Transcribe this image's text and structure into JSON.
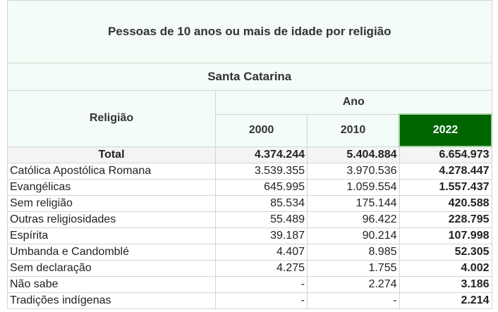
{
  "title": "Pessoas de 10 anos ou mais de idade por religião",
  "region": "Santa Catarina",
  "row_header": "Religião",
  "group_header": "Ano",
  "years": [
    "2000",
    "2010",
    "2022"
  ],
  "colors": {
    "highlight": "#006400",
    "header_bg": "#f3fcf6"
  },
  "rows": [
    {
      "label": "Total",
      "v": [
        "4.374.244",
        "5.404.884",
        "6.654.973"
      ]
    },
    {
      "label": "Católica Apostólica Romana",
      "v": [
        "3.539.355",
        "3.970.536",
        "4.278.447"
      ]
    },
    {
      "label": "Evangélicas",
      "v": [
        "645.995",
        "1.059.554",
        "1.557.437"
      ]
    },
    {
      "label": "Sem religião",
      "v": [
        "85.534",
        "175.144",
        "420.588"
      ]
    },
    {
      "label": "Outras religiosidades",
      "v": [
        "55.489",
        "96.422",
        "228.795"
      ]
    },
    {
      "label": "Espírita",
      "v": [
        "39.187",
        "90.214",
        "107.998"
      ]
    },
    {
      "label": "Umbanda e Candomblé",
      "v": [
        "4.407",
        "8.985",
        "52.305"
      ]
    },
    {
      "label": "Sem declaração",
      "v": [
        "4.275",
        "1.755",
        "4.002"
      ]
    },
    {
      "label": "Não sabe",
      "v": [
        "-",
        "2.274",
        "3.186"
      ]
    },
    {
      "label": "Tradições indígenas",
      "v": [
        "-",
        "-",
        "2.214"
      ]
    }
  ]
}
